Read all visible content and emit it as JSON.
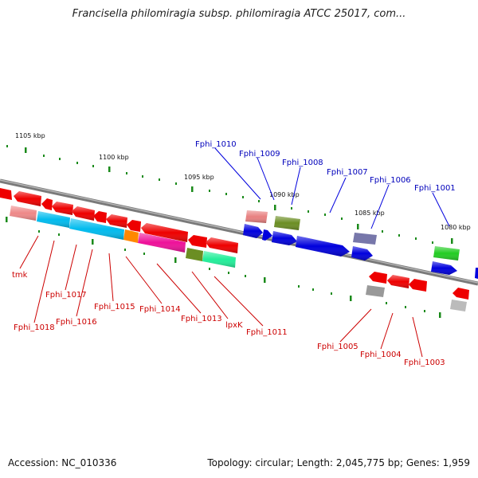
{
  "title": "Francisella philomiragia subsp. philomiragia ATCC 25017, com...",
  "accession": "Accession: NC_010336",
  "summary": "Topology: circular; Length: 2,045,775 bp; Genes: 1,959",
  "ruler_labels": [
    "1105 kbp",
    "1100 kbp",
    "1095 kbp",
    "1090 kbp",
    "1085 kbp",
    "1080 kbp"
  ],
  "forward_gene_labels": [
    "Fphi_1010",
    "Fphi_1009",
    "Fphi_1008",
    "Fphi_1007",
    "Fphi_1006",
    "Fphi_1001"
  ],
  "reverse_gene_labels": [
    "tmk",
    "Fphi_1017",
    "Fphi_1018",
    "Fphi_1016",
    "Fphi_1015",
    "Fphi_1014",
    "Fphi_1013",
    "lpxK",
    "Fphi_1011",
    "Fphi_1005",
    "Fphi_1004",
    "Fphi_1003"
  ],
  "colors": {
    "forward_label": "#0000bb",
    "reverse_label": "#cc0000",
    "backbone": "#777777",
    "tick": "#1a8a1a"
  }
}
